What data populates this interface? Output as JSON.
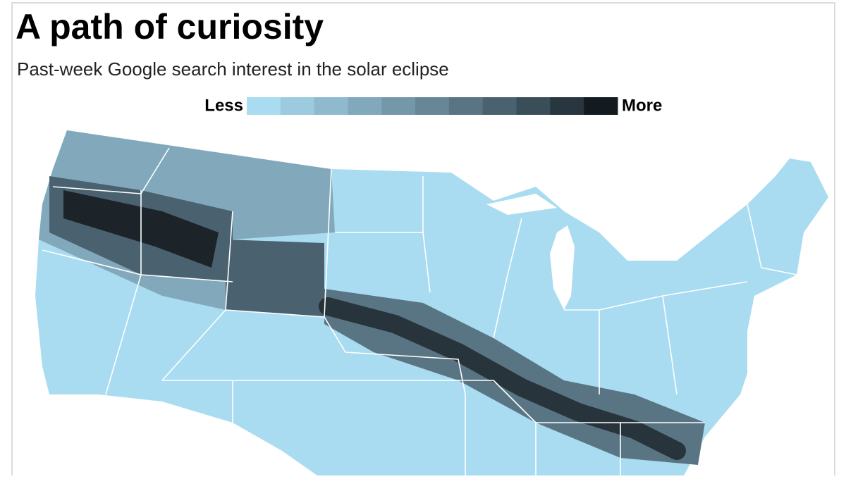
{
  "header": {
    "title": "A path of curiosity",
    "subtitle": "Past-week Google search interest in the solar eclipse"
  },
  "legend": {
    "low": "Less",
    "high": "More",
    "colors": [
      "#a9dcf0",
      "#9ccbdf",
      "#8fbacd",
      "#82a9bb",
      "#7598a9",
      "#678797",
      "#597584",
      "#4a6270",
      "#3a4e5a",
      "#283640",
      "#141b20"
    ]
  }
}
